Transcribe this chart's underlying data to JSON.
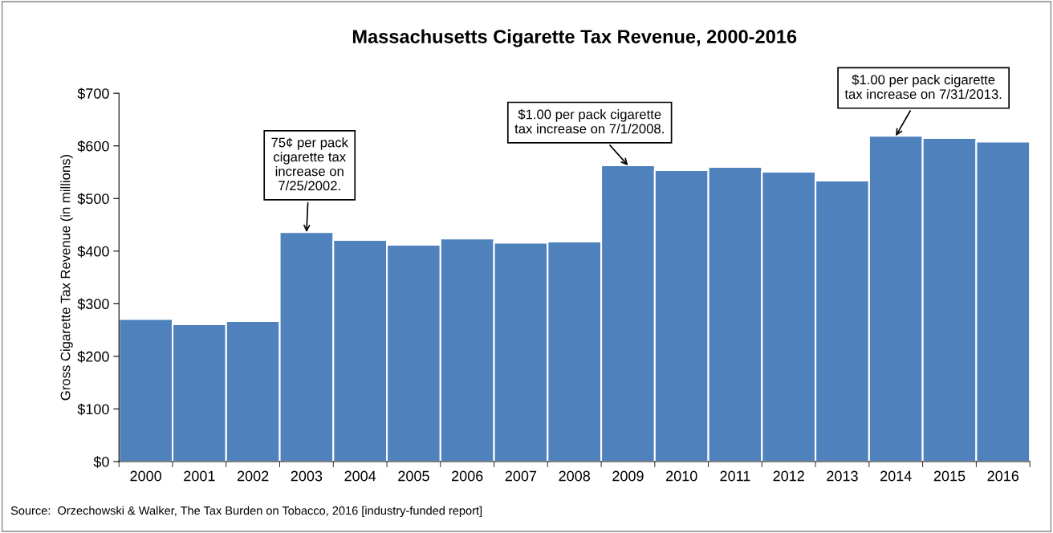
{
  "chart_data": {
    "type": "bar",
    "title": "Massachusetts Cigarette Tax Revenue, 2000-2016",
    "ylabel": "Gross Cigarette Tax Revenue (in millions)",
    "categories": [
      "2000",
      "2001",
      "2002",
      "2003",
      "2004",
      "2005",
      "2006",
      "2007",
      "2008",
      "2009",
      "2010",
      "2011",
      "2012",
      "2013",
      "2014",
      "2015",
      "2016"
    ],
    "values": [
      271,
      261,
      267,
      436,
      421,
      412,
      424,
      416,
      418,
      563,
      554,
      560,
      551,
      534,
      619,
      615,
      608
    ],
    "color": "#4f81bd",
    "ylim": [
      0,
      700
    ],
    "yticks": [
      {
        "value": 0,
        "label": "$0"
      },
      {
        "value": 100,
        "label": "$100"
      },
      {
        "value": 200,
        "label": "$200"
      },
      {
        "value": 300,
        "label": "$300"
      },
      {
        "value": 400,
        "label": "$400"
      },
      {
        "value": 500,
        "label": "$500"
      },
      {
        "value": 600,
        "label": "$600"
      },
      {
        "value": 700,
        "label": "$700"
      }
    ],
    "grid": false,
    "legend": false,
    "annotations": [
      {
        "text": "75¢ per pack\ncigarette tax\nincrease on\n7/25/2002.",
        "x": "2003",
        "y": 436
      },
      {
        "text": "$1.00 per pack cigarette\ntax increase on 7/1/2008.",
        "x": "2009",
        "y": 563
      },
      {
        "text": "$1.00 per pack cigarette\ntax increase on 7/31/2013.",
        "x": "2014",
        "y": 619
      },
      "Source:  Orzechowski & Walker, The Tax Burden on Tobacco, 2016 [industry-funded report]"
    ]
  }
}
